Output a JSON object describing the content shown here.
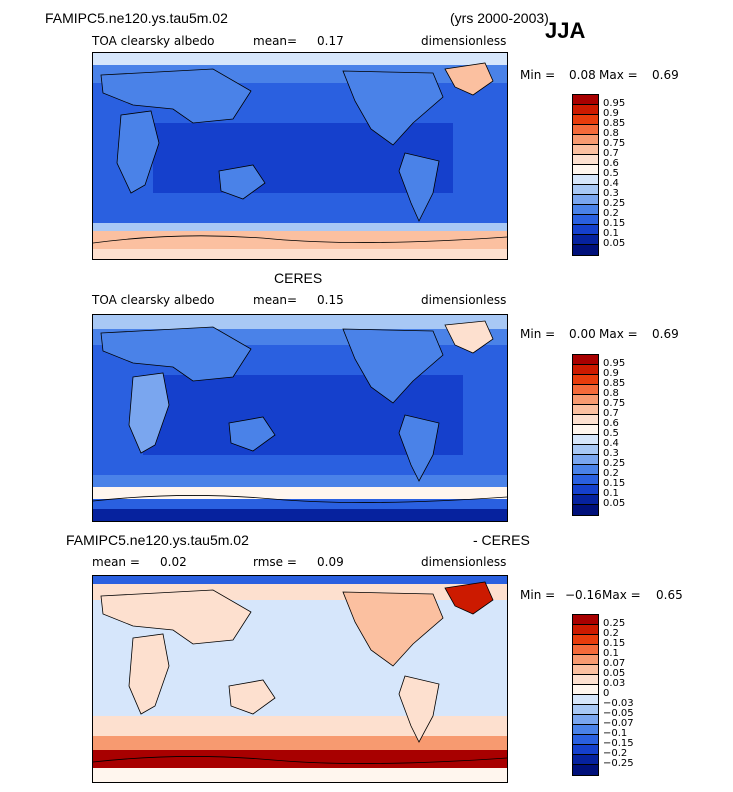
{
  "header": {
    "model": "FAMIPC5.ne120.ys.tau5m.02",
    "years": "(yrs 2000-2003)",
    "season": "JJA"
  },
  "panel1": {
    "var": "TOA clearsky albedo",
    "mean_label": "mean=",
    "mean": "0.17",
    "units": "dimensionless",
    "min_label": "Min =",
    "min": "0.08",
    "max_label": "Max =",
    "max": "0.69"
  },
  "panel2": {
    "title": "CERES",
    "var": "TOA clearsky albedo",
    "mean_label": "mean=",
    "mean": "0.15",
    "units": "dimensionless",
    "min_label": "Min =",
    "min": "0.00",
    "max_label": "Max =",
    "max": "0.69"
  },
  "panel3": {
    "title_left": "FAMIPC5.ne120.ys.tau5m.02",
    "title_right": "- CERES",
    "mean_label": "mean =",
    "mean": "0.02",
    "rmse_label": "rmse =",
    "rmse": "0.09",
    "units": "dimensionless",
    "min_label": "Min =",
    "min": "−0.16",
    "max_label": "Max =",
    "max": "0.65"
  },
  "colorbar_abs": {
    "labels": [
      "0.95",
      "0.9",
      "0.85",
      "0.8",
      "0.75",
      "0.7",
      "0.6",
      "0.5",
      "0.4",
      "0.3",
      "0.25",
      "0.2",
      "0.15",
      "0.1",
      "0.05"
    ],
    "colors": [
      "#a80000",
      "#cc1a00",
      "#e83c0c",
      "#f46a3a",
      "#f79a70",
      "#fbc0a0",
      "#fde0cf",
      "#fff6ee",
      "#d6e6fb",
      "#a8c8f5",
      "#7aa6ef",
      "#4a82e8",
      "#2a60e0",
      "#1540cc",
      "#06229e",
      "#00107a"
    ]
  },
  "colorbar_diff": {
    "labels": [
      "0.25",
      "0.2",
      "0.15",
      "0.1",
      "0.07",
      "0.05",
      "0.03",
      "0",
      "−0.03",
      "−0.05",
      "−0.07",
      "−0.1",
      "−0.15",
      "−0.2",
      "−0.25"
    ],
    "colors": [
      "#a80000",
      "#cc1a00",
      "#e83c0c",
      "#f46a3a",
      "#f79a70",
      "#fbc0a0",
      "#fde0cf",
      "#fff6ee",
      "#d6e6fb",
      "#a8c8f5",
      "#7aa6ef",
      "#4a82e8",
      "#2a60e0",
      "#1540cc",
      "#06229e",
      "#00107a"
    ]
  }
}
